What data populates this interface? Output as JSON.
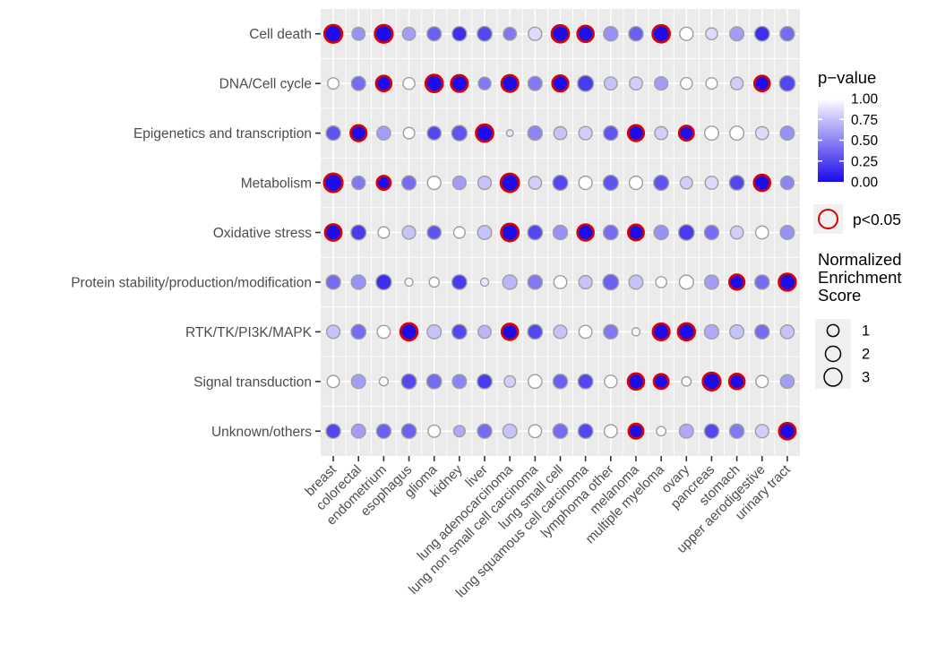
{
  "chart_data": {
    "type": "scatter",
    "subtype": "bubble-matrix-dotplot",
    "title": "",
    "xlabel": "",
    "ylabel": "",
    "grid": true,
    "rows": [
      "Cell death",
      "DNA/Cell cycle",
      "Epigenetics and transcription",
      "Metabolism",
      "Oxidative stress",
      "Protein stability/production/modification",
      "RTK/TK/PI3K/MAPK",
      "Signal transduction",
      "Unknown/others"
    ],
    "columns": [
      "breast",
      "colorectal",
      "endometrium",
      "esophagus",
      "glioma",
      "kidney",
      "liver",
      "lung adenocarcinoma",
      "lung non small cell carcinoma",
      "lung small cell",
      "lung squamous cell carcinoma",
      "lymphoma other",
      "melanoma",
      "multiple myeloma",
      "ovary",
      "pancreas",
      "stomach",
      "upper aerodigestive",
      "urinary tract"
    ],
    "cells_format": [
      "normalized_enrichment_score",
      "p_value",
      "significant_p_lt_0.05"
    ],
    "cells": [
      [
        [
          2.9,
          0.01,
          1
        ],
        [
          1.3,
          0.55,
          0
        ],
        [
          2.9,
          0.01,
          1
        ],
        [
          1.3,
          0.6,
          0
        ],
        [
          1.6,
          0.35,
          0
        ],
        [
          1.7,
          0.15,
          0
        ],
        [
          1.8,
          0.25,
          0
        ],
        [
          1.3,
          0.45,
          0
        ],
        [
          1.4,
          0.85,
          0
        ],
        [
          2.7,
          0.01,
          1
        ],
        [
          2.3,
          0.02,
          1
        ],
        [
          1.7,
          0.55,
          0
        ],
        [
          1.7,
          0.35,
          0
        ],
        [
          2.7,
          0.01,
          1
        ],
        [
          1.4,
          1.0,
          0
        ],
        [
          1.0,
          0.85,
          0
        ],
        [
          1.6,
          0.6,
          0
        ],
        [
          1.8,
          0.15,
          0
        ],
        [
          1.7,
          0.4,
          0
        ]
      ],
      [
        [
          0.9,
          1.0,
          0
        ],
        [
          1.6,
          0.4,
          0
        ],
        [
          2.0,
          0.01,
          1
        ],
        [
          1.0,
          1.0,
          0
        ],
        [
          2.7,
          0.01,
          1
        ],
        [
          2.5,
          0.01,
          1
        ],
        [
          1.2,
          0.45,
          0
        ],
        [
          2.5,
          0.01,
          1
        ],
        [
          1.6,
          0.45,
          0
        ],
        [
          2.2,
          0.01,
          1
        ],
        [
          2.2,
          0.2,
          0
        ],
        [
          1.3,
          0.75,
          0
        ],
        [
          1.3,
          0.8,
          0
        ],
        [
          1.4,
          0.6,
          0
        ],
        [
          1.0,
          1.0,
          0
        ],
        [
          0.9,
          1.0,
          0
        ],
        [
          1.2,
          0.8,
          0
        ],
        [
          2.0,
          0.01,
          1
        ],
        [
          2.1,
          0.25,
          0
        ]
      ],
      [
        [
          1.7,
          0.3,
          0
        ],
        [
          2.2,
          0.01,
          1
        ],
        [
          1.5,
          0.6,
          0
        ],
        [
          0.9,
          1.0,
          0
        ],
        [
          1.5,
          0.25,
          0
        ],
        [
          2.0,
          0.3,
          0
        ],
        [
          2.7,
          0.01,
          1
        ],
        [
          0.15,
          0.9,
          0
        ],
        [
          1.7,
          0.5,
          0
        ],
        [
          1.3,
          0.75,
          0
        ],
        [
          1.4,
          0.8,
          0
        ],
        [
          1.7,
          0.3,
          0
        ],
        [
          2.2,
          0.01,
          1
        ],
        [
          1.3,
          0.8,
          0
        ],
        [
          1.8,
          0.02,
          1
        ],
        [
          1.6,
          1.0,
          0
        ],
        [
          1.6,
          1.0,
          0
        ],
        [
          1.3,
          0.85,
          0
        ],
        [
          1.6,
          0.55,
          0
        ]
      ],
      [
        [
          3.2,
          0.01,
          1
        ],
        [
          1.4,
          0.45,
          0
        ],
        [
          1.5,
          0.01,
          1
        ],
        [
          1.6,
          0.4,
          0
        ],
        [
          1.4,
          1.0,
          0
        ],
        [
          1.4,
          0.6,
          0
        ],
        [
          1.4,
          0.75,
          0
        ],
        [
          3.1,
          0.01,
          1
        ],
        [
          1.3,
          0.8,
          0
        ],
        [
          1.9,
          0.25,
          0
        ],
        [
          1.4,
          1.0,
          0
        ],
        [
          1.9,
          0.3,
          0
        ],
        [
          1.4,
          1.0,
          0
        ],
        [
          1.9,
          0.3,
          0
        ],
        [
          1.1,
          0.8,
          0
        ],
        [
          1.3,
          0.85,
          0
        ],
        [
          1.8,
          0.25,
          0
        ],
        [
          2.3,
          0.01,
          1
        ],
        [
          1.4,
          0.5,
          0
        ]
      ],
      [
        [
          2.4,
          0.01,
          1
        ],
        [
          1.9,
          0.2,
          0
        ],
        [
          0.9,
          1.0,
          0
        ],
        [
          1.4,
          0.75,
          0
        ],
        [
          1.5,
          0.3,
          0
        ],
        [
          0.9,
          1.0,
          0
        ],
        [
          1.6,
          0.75,
          0
        ],
        [
          2.8,
          0.01,
          1
        ],
        [
          1.8,
          0.25,
          0
        ],
        [
          1.7,
          0.55,
          0
        ],
        [
          2.3,
          0.01,
          1
        ],
        [
          1.8,
          0.4,
          0
        ],
        [
          2.1,
          0.01,
          1
        ],
        [
          1.7,
          0.55,
          0
        ],
        [
          2.1,
          0.2,
          0
        ],
        [
          1.7,
          0.4,
          0
        ],
        [
          1.3,
          0.8,
          0
        ],
        [
          1.3,
          1.0,
          0
        ],
        [
          1.6,
          0.55,
          0
        ]
      ],
      [
        [
          1.7,
          0.4,
          0
        ],
        [
          1.7,
          0.55,
          0
        ],
        [
          2.0,
          0.15,
          0
        ],
        [
          0.3,
          1.0,
          0
        ],
        [
          0.6,
          1.0,
          0
        ],
        [
          1.8,
          0.2,
          0
        ],
        [
          0.3,
          0.9,
          0
        ],
        [
          1.7,
          0.7,
          0
        ],
        [
          1.7,
          0.45,
          0
        ],
        [
          1.3,
          1.0,
          0
        ],
        [
          1.4,
          0.75,
          0
        ],
        [
          2.1,
          0.35,
          0
        ],
        [
          1.6,
          0.75,
          0
        ],
        [
          0.8,
          1.0,
          0
        ],
        [
          1.6,
          1.0,
          0
        ],
        [
          1.6,
          0.6,
          0
        ],
        [
          1.9,
          0.01,
          1
        ],
        [
          1.7,
          0.4,
          0
        ],
        [
          2.6,
          0.01,
          1
        ]
      ],
      [
        [
          1.4,
          0.75,
          0
        ],
        [
          1.8,
          0.4,
          0
        ],
        [
          1.3,
          1.0,
          0
        ],
        [
          2.6,
          0.01,
          1
        ],
        [
          1.6,
          0.75,
          0
        ],
        [
          1.8,
          0.25,
          0
        ],
        [
          1.3,
          0.7,
          0
        ],
        [
          2.3,
          0.01,
          1
        ],
        [
          1.8,
          0.25,
          0
        ],
        [
          1.4,
          0.75,
          0
        ],
        [
          1.3,
          1.0,
          0
        ],
        [
          1.7,
          0.45,
          0
        ],
        [
          0.3,
          1.0,
          0
        ],
        [
          2.5,
          0.01,
          1
        ],
        [
          2.6,
          0.01,
          1
        ],
        [
          1.7,
          0.65,
          0
        ],
        [
          1.6,
          0.75,
          0
        ],
        [
          1.7,
          0.4,
          0
        ],
        [
          1.5,
          0.75,
          0
        ]
      ],
      [
        [
          1.1,
          1.0,
          0
        ],
        [
          1.6,
          0.6,
          0
        ],
        [
          0.4,
          1.0,
          0
        ],
        [
          1.9,
          0.25,
          0
        ],
        [
          1.8,
          0.4,
          0
        ],
        [
          1.6,
          0.5,
          0
        ],
        [
          1.8,
          0.2,
          0
        ],
        [
          0.9,
          0.8,
          0
        ],
        [
          1.5,
          1.0,
          0
        ],
        [
          1.7,
          0.35,
          0
        ],
        [
          1.8,
          0.25,
          0
        ],
        [
          1.2,
          1.0,
          0
        ],
        [
          2.3,
          0.01,
          1
        ],
        [
          1.8,
          0.01,
          1
        ],
        [
          0.5,
          1.0,
          0
        ],
        [
          2.9,
          0.01,
          1
        ],
        [
          2.0,
          0.01,
          1
        ],
        [
          1.1,
          1.0,
          0
        ],
        [
          1.5,
          0.6,
          0
        ]
      ],
      [
        [
          1.7,
          0.25,
          0
        ],
        [
          1.6,
          0.6,
          0
        ],
        [
          1.7,
          0.35,
          0
        ],
        [
          1.8,
          0.35,
          0
        ],
        [
          1.1,
          1.0,
          0
        ],
        [
          0.9,
          0.65,
          0
        ],
        [
          1.7,
          0.4,
          0
        ],
        [
          1.6,
          0.75,
          0
        ],
        [
          1.3,
          1.0,
          0
        ],
        [
          1.8,
          0.4,
          0
        ],
        [
          1.8,
          0.25,
          0
        ],
        [
          1.3,
          1.0,
          0
        ],
        [
          1.8,
          0.01,
          1
        ],
        [
          0.5,
          1.0,
          0
        ],
        [
          1.6,
          0.65,
          0
        ],
        [
          1.7,
          0.25,
          0
        ],
        [
          1.7,
          0.45,
          0
        ],
        [
          1.4,
          0.8,
          0
        ],
        [
          2.4,
          0.01,
          1
        ]
      ]
    ],
    "legend": {
      "color": {
        "title": "p−value",
        "tick_labels": [
          "1.00",
          "0.75",
          "0.50",
          "0.25",
          "0.00"
        ],
        "tick_values": [
          1.0,
          0.75,
          0.5,
          0.25,
          0.0
        ],
        "high_p_color": "#FFFFFF",
        "low_p_color": "#1B0AEA",
        "position": "right"
      },
      "significance": {
        "label": "p<0.05",
        "ring_color": "#DC0000"
      },
      "size": {
        "title_lines": [
          "Normalized",
          "Enrichment",
          "Score"
        ],
        "values": [
          "1",
          "2",
          "3"
        ]
      }
    },
    "colors": {
      "panel_background": "#EBEBEB",
      "gridline": "#FFFFFF",
      "dot_stroke_nonsig": "#9E9E9E",
      "dot_stroke_sig": "#DC0000",
      "axis_text": "#4D4D4D",
      "tick_mark": "#333333",
      "legend_key_background": "#F0F0F0",
      "legend_text": "#000000"
    }
  }
}
